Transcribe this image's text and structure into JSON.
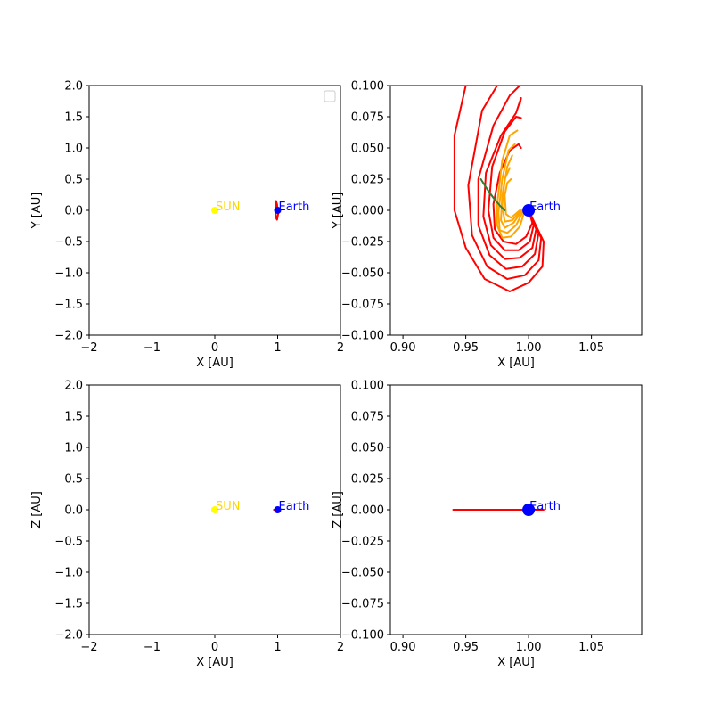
{
  "chart_data": [
    {
      "type": "line",
      "panel": "top-left",
      "xlabel": "X [AU]",
      "ylabel": "Y [AU]",
      "xlim": [
        -2,
        2
      ],
      "ylim": [
        -2,
        2
      ],
      "xticks": [
        -2,
        -1,
        0,
        1,
        2
      ],
      "xtick_labels": [
        "−2",
        "−1",
        "0",
        "1",
        "2"
      ],
      "yticks": [
        -2.0,
        -1.5,
        -1.0,
        -0.5,
        0.0,
        0.5,
        1.0,
        1.5,
        2.0
      ],
      "ytick_labels": [
        "−2.0",
        "−1.5",
        "−1.0",
        "−0.5",
        "0.0",
        "0.5",
        "1.0",
        "1.5",
        "2.0"
      ],
      "grid": false,
      "legend": "upper-right (empty)",
      "points": [
        {
          "name": "SUN",
          "x": 0.0,
          "y": 0.0,
          "color": "#ffff00",
          "marker_size": 4
        },
        {
          "name": "Earth",
          "x": 1.0,
          "y": 0.0,
          "color": "#0000ff",
          "marker_size": 4
        }
      ],
      "series": [
        {
          "color": "#ff0000",
          "width": 2,
          "x": [
            1.0,
            0.99,
            0.975,
            0.965,
            0.965,
            0.975,
            0.99,
            1.0,
            1.01,
            1.005,
            1.0
          ],
          "y": [
            0.0,
            0.1,
            0.15,
            0.12,
            0.0,
            -0.12,
            -0.15,
            -0.1,
            -0.05,
            -0.01,
            0.0
          ]
        }
      ],
      "annotations": [
        {
          "text": "SUN",
          "x": 0.0,
          "y": 0.0,
          "color": "#ffd700"
        },
        {
          "text": "Earth",
          "x": 1.0,
          "y": 0.0,
          "color": "#0000ff"
        }
      ]
    },
    {
      "type": "line",
      "panel": "top-right",
      "xlabel": "X [AU]",
      "ylabel": "Y [AU]",
      "xlim": [
        0.89,
        1.09
      ],
      "ylim": [
        -0.1,
        0.1
      ],
      "xticks": [
        0.9,
        0.95,
        1.0,
        1.05
      ],
      "xtick_labels": [
        "0.90",
        "0.95",
        "1.00",
        "1.05"
      ],
      "yticks": [
        -0.1,
        -0.075,
        -0.05,
        -0.025,
        0.0,
        0.025,
        0.05,
        0.075,
        0.1
      ],
      "ytick_labels": [
        "−0.100",
        "−0.075",
        "−0.050",
        "−0.025",
        "0.000",
        "0.025",
        "0.050",
        "0.075",
        "0.100"
      ],
      "grid": false,
      "points": [
        {
          "name": "Earth",
          "x": 1.0,
          "y": 0.0,
          "color": "#0000ff",
          "marker_size": 7
        }
      ],
      "series": [
        {
          "color": "#ff0000",
          "width": 2,
          "x": [
            1.0,
            1.012,
            1.011,
            1.0,
            0.985,
            0.965,
            0.95,
            0.941,
            0.941,
            0.95
          ],
          "y": [
            0.0,
            -0.025,
            -0.045,
            -0.058,
            -0.065,
            -0.055,
            -0.03,
            0.0,
            0.06,
            0.1
          ]
        },
        {
          "color": "#ff0000",
          "width": 2,
          "x": [
            1.0,
            1.01,
            1.008,
            0.997,
            0.983,
            0.967,
            0.955,
            0.952,
            0.963,
            0.975
          ],
          "y": [
            0.0,
            -0.022,
            -0.04,
            -0.052,
            -0.055,
            -0.045,
            -0.02,
            0.02,
            0.08,
            0.1
          ]
        },
        {
          "color": "#ff0000",
          "width": 2,
          "x": [
            1.0,
            1.008,
            1.005,
            0.995,
            0.982,
            0.969,
            0.96,
            0.96,
            0.972,
            0.985,
            0.993,
            0.997
          ],
          "y": [
            0.0,
            -0.018,
            -0.035,
            -0.045,
            -0.047,
            -0.036,
            -0.012,
            0.025,
            0.068,
            0.092,
            0.1,
            0.1
          ]
        },
        {
          "color": "#ff0000",
          "width": 2,
          "x": [
            1.0,
            1.006,
            1.003,
            0.993,
            0.981,
            0.97,
            0.964,
            0.966,
            0.978,
            0.99,
            0.994,
            0.993
          ],
          "y": [
            0.0,
            -0.015,
            -0.03,
            -0.038,
            -0.039,
            -0.028,
            -0.005,
            0.03,
            0.06,
            0.078,
            0.09,
            0.085
          ]
        },
        {
          "color": "#ff0000",
          "width": 2,
          "x": [
            1.0,
            1.004,
            1.001,
            0.992,
            0.981,
            0.972,
            0.968,
            0.971,
            0.981,
            0.99,
            0.994
          ],
          "y": [
            0.0,
            -0.012,
            -0.025,
            -0.032,
            -0.032,
            -0.022,
            0.0,
            0.035,
            0.063,
            0.075,
            0.074
          ]
        },
        {
          "color": "#ff0000",
          "width": 2,
          "x": [
            1.0,
            1.003,
            0.998,
            0.99,
            0.98,
            0.973,
            0.972,
            0.977,
            0.985,
            0.992,
            0.994
          ],
          "y": [
            0.0,
            -0.01,
            -0.021,
            -0.027,
            -0.025,
            -0.015,
            0.005,
            0.03,
            0.048,
            0.053,
            0.05
          ]
        },
        {
          "color": "#ffa500",
          "width": 2,
          "x": [
            0.997,
            0.993,
            0.986,
            0.979,
            0.975,
            0.975,
            0.979,
            0.985,
            0.991
          ],
          "y": [
            0.0,
            -0.013,
            -0.021,
            -0.022,
            -0.012,
            0.005,
            0.04,
            0.06,
            0.064
          ]
        },
        {
          "color": "#ffa500",
          "width": 2,
          "x": [
            0.996,
            0.99,
            0.983,
            0.977,
            0.976,
            0.979,
            0.984,
            0.989
          ],
          "y": [
            0.0,
            -0.012,
            -0.018,
            -0.016,
            -0.002,
            0.025,
            0.048,
            0.053
          ]
        },
        {
          "color": "#ffa500",
          "width": 2,
          "x": [
            0.995,
            0.988,
            0.981,
            0.978,
            0.979,
            0.983,
            0.987
          ],
          "y": [
            0.0,
            -0.01,
            -0.014,
            -0.008,
            0.012,
            0.035,
            0.044
          ]
        },
        {
          "color": "#ffa500",
          "width": 2,
          "x": [
            0.994,
            0.987,
            0.981,
            0.979,
            0.981,
            0.985
          ],
          "y": [
            0.0,
            -0.008,
            -0.009,
            0.004,
            0.025,
            0.034
          ]
        },
        {
          "color": "#ffa500",
          "width": 2,
          "x": [
            0.993,
            0.986,
            0.982,
            0.981,
            0.983,
            0.986
          ],
          "y": [
            0.0,
            -0.006,
            -0.003,
            0.012,
            0.022,
            0.025
          ]
        },
        {
          "color": "#2e7d32",
          "width": 2,
          "x": [
            0.962,
            0.967,
            0.972,
            0.977,
            0.981
          ],
          "y": [
            0.025,
            0.017,
            0.01,
            0.004,
            0.0
          ]
        }
      ],
      "annotations": [
        {
          "text": "Earth",
          "x": 1.0,
          "y": 0.0,
          "color": "#0000ff"
        }
      ]
    },
    {
      "type": "line",
      "panel": "bottom-left",
      "xlabel": "X [AU]",
      "ylabel": "Z [AU]",
      "xlim": [
        -2,
        2
      ],
      "ylim": [
        -2,
        2
      ],
      "xticks": [
        -2,
        -1,
        0,
        1,
        2
      ],
      "xtick_labels": [
        "−2",
        "−1",
        "0",
        "1",
        "2"
      ],
      "yticks": [
        -2.0,
        -1.5,
        -1.0,
        -0.5,
        0.0,
        0.5,
        1.0,
        1.5,
        2.0
      ],
      "ytick_labels": [
        "−2.0",
        "−1.5",
        "−1.0",
        "−0.5",
        "0.0",
        "0.5",
        "1.0",
        "1.5",
        "2.0"
      ],
      "grid": false,
      "points": [
        {
          "name": "SUN",
          "x": 0.0,
          "y": 0.0,
          "color": "#ffff00",
          "marker_size": 4
        },
        {
          "name": "Earth",
          "x": 1.0,
          "y": 0.0,
          "color": "#0000ff",
          "marker_size": 4
        }
      ],
      "series": [
        {
          "color": "#ff0000",
          "width": 2,
          "x": [
            0.94,
            1.015
          ],
          "y": [
            0.0,
            0.0
          ]
        }
      ],
      "annotations": [
        {
          "text": "SUN",
          "x": 0.0,
          "y": 0.0,
          "color": "#ffd700"
        },
        {
          "text": "Earth",
          "x": 1.0,
          "y": 0.0,
          "color": "#0000ff"
        }
      ]
    },
    {
      "type": "line",
      "panel": "bottom-right",
      "xlabel": "X [AU]",
      "ylabel": "Z [AU]",
      "xlim": [
        0.89,
        1.09
      ],
      "ylim": [
        -0.1,
        0.1
      ],
      "xticks": [
        0.9,
        0.95,
        1.0,
        1.05
      ],
      "xtick_labels": [
        "0.90",
        "0.95",
        "1.00",
        "1.05"
      ],
      "yticks": [
        -0.1,
        -0.075,
        -0.05,
        -0.025,
        0.0,
        0.025,
        0.05,
        0.075,
        0.1
      ],
      "ytick_labels": [
        "−0.100",
        "−0.075",
        "−0.050",
        "−0.025",
        "0.000",
        "0.025",
        "0.050",
        "0.075",
        "0.100"
      ],
      "grid": false,
      "points": [
        {
          "name": "Earth",
          "x": 1.0,
          "y": 0.0,
          "color": "#0000ff",
          "marker_size": 7
        }
      ],
      "series": [
        {
          "color": "#ff0000",
          "width": 2,
          "x": [
            0.94,
            1.012
          ],
          "y": [
            0.0,
            0.0
          ]
        }
      ],
      "annotations": [
        {
          "text": "Earth",
          "x": 1.0,
          "y": 0.0,
          "color": "#0000ff"
        }
      ]
    }
  ]
}
